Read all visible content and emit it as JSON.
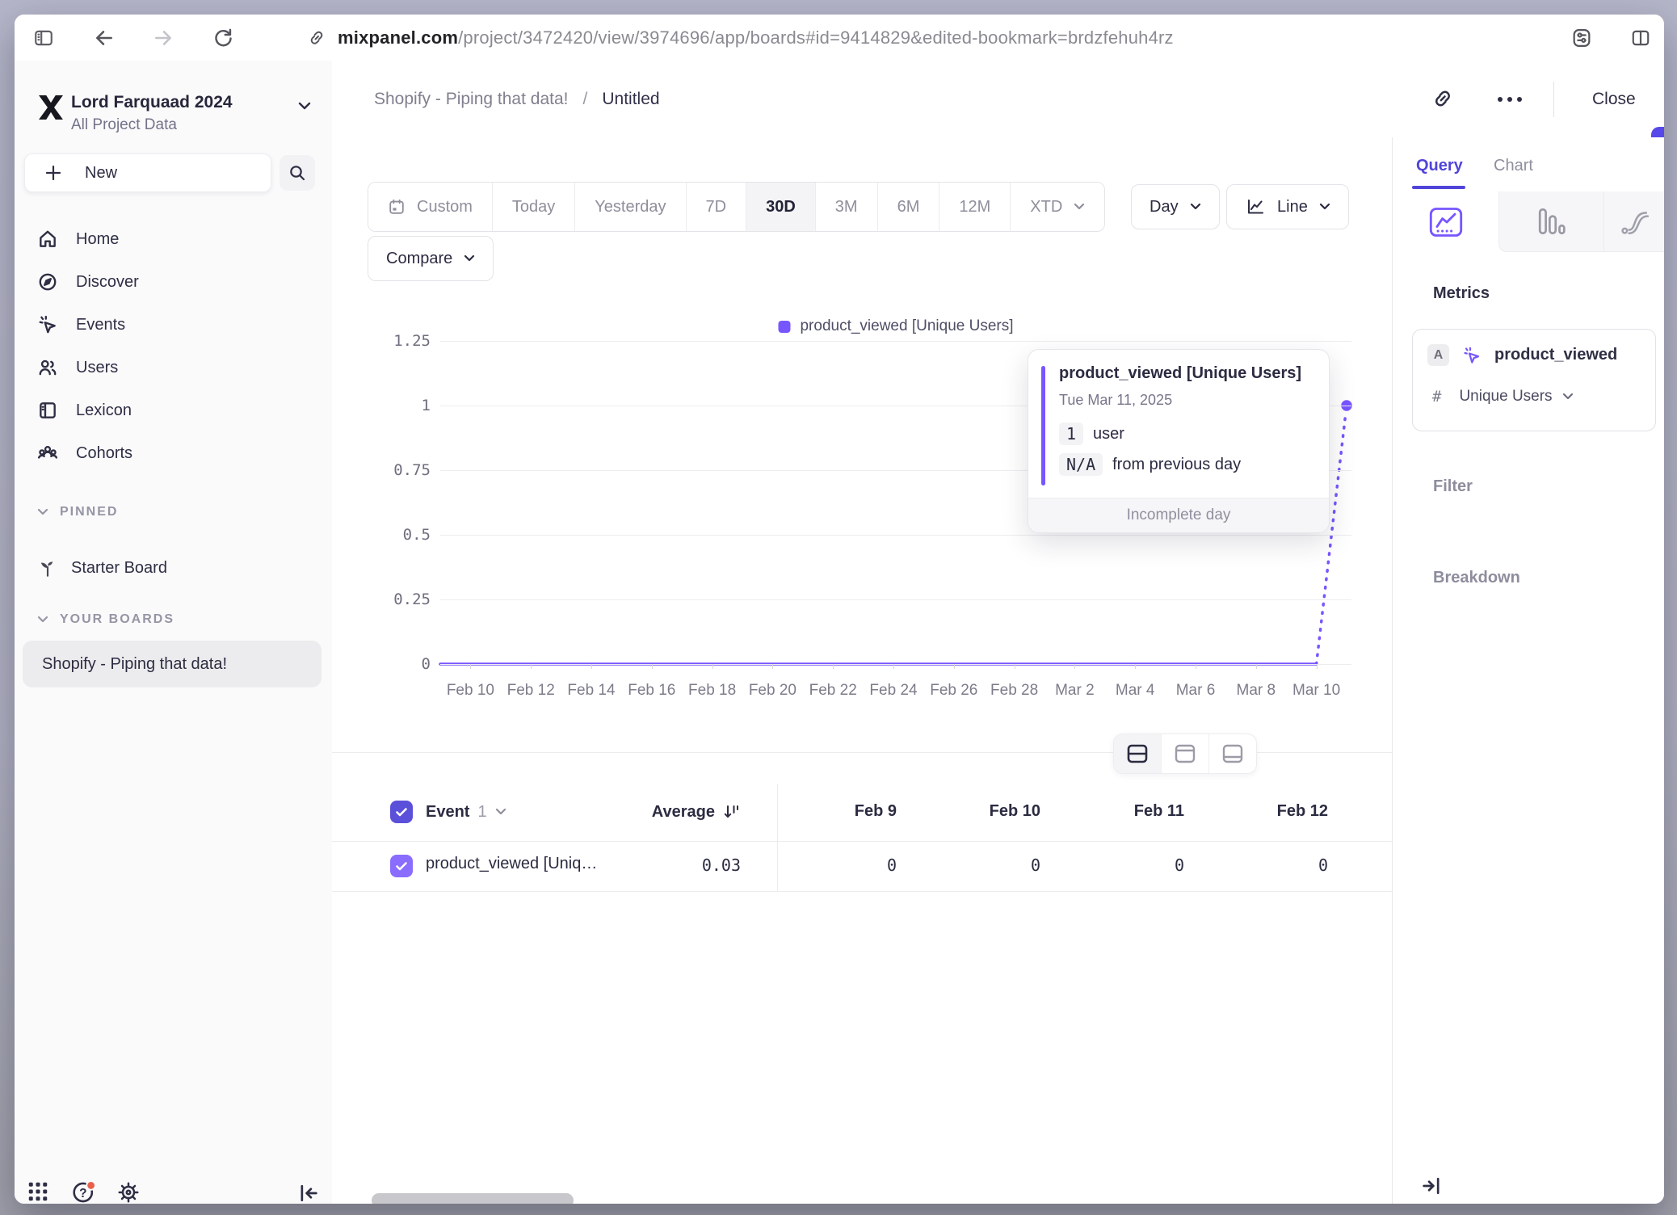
{
  "browser": {
    "url_host": "mixpanel.com",
    "url_path": "/project/3472420/view/3974696/app/boards#id=9414829&edited-bookmark=brdzfehuh4rz"
  },
  "sidebar": {
    "project_name": "Lord Farquaad 2024",
    "project_scope": "All Project Data",
    "new_label": "New",
    "nav": [
      {
        "label": "Home"
      },
      {
        "label": "Discover"
      },
      {
        "label": "Events"
      },
      {
        "label": "Users"
      },
      {
        "label": "Lexicon"
      },
      {
        "label": "Cohorts"
      }
    ],
    "pinned_label": "PINNED",
    "starter_board": "Starter Board",
    "boards_label": "YOUR BOARDS",
    "selected_board": "Shopify - Piping that data!"
  },
  "header": {
    "breadcrumb_board": "Shopify - Piping that data!",
    "breadcrumb_sep": "/",
    "breadcrumb_page": "Untitled",
    "close_label": "Close"
  },
  "toolbar": {
    "ranges": [
      "Custom",
      "Today",
      "Yesterday",
      "7D",
      "30D",
      "3M",
      "6M",
      "12M",
      "XTD"
    ],
    "active_range": "30D",
    "granularity": "Day",
    "chart_type": "Line",
    "compare_label": "Compare"
  },
  "chart_data": {
    "type": "line",
    "legend": "product_viewed [Unique Users]",
    "series_color": "#7856FF",
    "ylim": [
      0,
      1.25
    ],
    "y_tick_labels": [
      "1.25",
      "1",
      "0.75",
      "0.5",
      "0.25",
      "0"
    ],
    "x_tick_labels": [
      "Feb 10",
      "Feb 12",
      "Feb 14",
      "Feb 16",
      "Feb 18",
      "Feb 20",
      "Feb 22",
      "Feb 24",
      "Feb 26",
      "Feb 28",
      "Mar 2",
      "Mar 4",
      "Mar 6",
      "Mar 8",
      "Mar 10"
    ],
    "points": [
      {
        "date": "Feb 9",
        "value": 0
      },
      {
        "date": "Feb 10",
        "value": 0
      },
      {
        "date": "Feb 11",
        "value": 0
      },
      {
        "date": "Feb 12",
        "value": 0
      },
      {
        "date": "Feb 13",
        "value": 0
      },
      {
        "date": "Feb 14",
        "value": 0
      },
      {
        "date": "Feb 15",
        "value": 0
      },
      {
        "date": "Feb 16",
        "value": 0
      },
      {
        "date": "Feb 17",
        "value": 0
      },
      {
        "date": "Feb 18",
        "value": 0
      },
      {
        "date": "Feb 19",
        "value": 0
      },
      {
        "date": "Feb 20",
        "value": 0
      },
      {
        "date": "Feb 21",
        "value": 0
      },
      {
        "date": "Feb 22",
        "value": 0
      },
      {
        "date": "Feb 23",
        "value": 0
      },
      {
        "date": "Feb 24",
        "value": 0
      },
      {
        "date": "Feb 25",
        "value": 0
      },
      {
        "date": "Feb 26",
        "value": 0
      },
      {
        "date": "Feb 27",
        "value": 0
      },
      {
        "date": "Feb 28",
        "value": 0
      },
      {
        "date": "Mar 1",
        "value": 0
      },
      {
        "date": "Mar 2",
        "value": 0
      },
      {
        "date": "Mar 3",
        "value": 0
      },
      {
        "date": "Mar 4",
        "value": 0
      },
      {
        "date": "Mar 5",
        "value": 0
      },
      {
        "date": "Mar 6",
        "value": 0
      },
      {
        "date": "Mar 7",
        "value": 0
      },
      {
        "date": "Mar 8",
        "value": 0
      },
      {
        "date": "Mar 9",
        "value": 0
      },
      {
        "date": "Mar 10",
        "value": 0
      },
      {
        "date": "Mar 11",
        "value": 1,
        "incomplete": true
      }
    ]
  },
  "tooltip": {
    "title": "product_viewed [Unique Users]",
    "date": "Tue Mar 11, 2025",
    "value": "1",
    "unit": "user",
    "change": "N/A",
    "change_text": "from previous day",
    "footer": "Incomplete day"
  },
  "table": {
    "event_label": "Event",
    "event_count": "1",
    "average_label": "Average",
    "date_cols": [
      "Feb 9",
      "Feb 10",
      "Feb 11",
      "Feb 12"
    ],
    "rows": [
      {
        "name": "product_viewed [Uniq…",
        "average": "0.03",
        "values": [
          "0",
          "0",
          "0",
          "0"
        ]
      }
    ]
  },
  "query_panel": {
    "tab_query": "Query",
    "tab_chart": "Chart",
    "metrics_label": "Metrics",
    "metric_letter": "A",
    "metric_event": "product_viewed",
    "agg_symbol": "#",
    "metric_aggregation": "Unique Users",
    "filter_label": "Filter",
    "breakdown_label": "Breakdown"
  },
  "colors": {
    "accent": "#7856FF",
    "accent_deep": "#5144D9",
    "save_button": "#5748E9",
    "checkbox_header": "#5B50DA",
    "checkbox_row": "#8A6CFF",
    "notification_dot": "#E8604C"
  }
}
